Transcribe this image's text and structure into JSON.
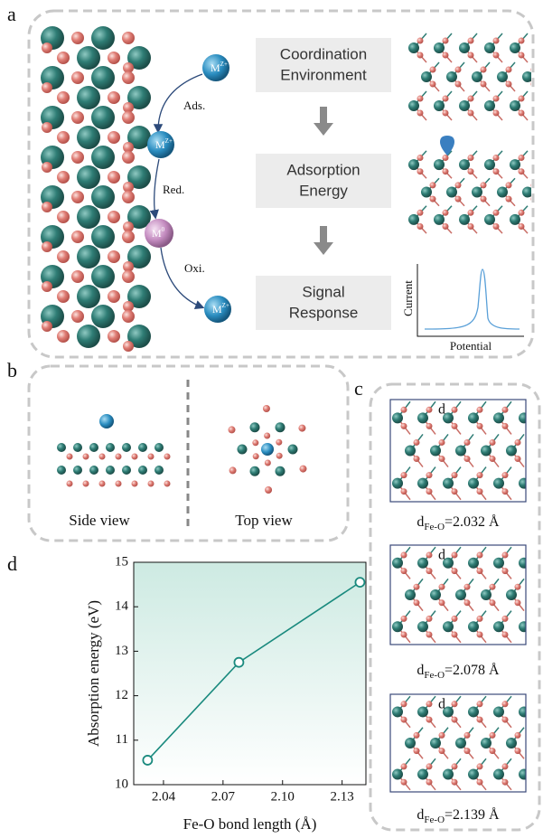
{
  "panel_labels": [
    "a",
    "b",
    "c",
    "d"
  ],
  "panel_a": {
    "steps": [
      [
        "Coordination",
        "Environment"
      ],
      [
        "Adsorption",
        "Energy"
      ],
      [
        "Signal",
        "Response"
      ]
    ],
    "ion": "M",
    "charge": "Z+",
    "reduced": "0",
    "reactions": [
      "Ads.",
      "Red.",
      "Oxi."
    ],
    "signal_axes": {
      "y": "Current",
      "x": "Potential"
    }
  },
  "panel_b": {
    "views": [
      "Side view",
      "Top view"
    ]
  },
  "panel_c": {
    "marker": "d",
    "symbol": "d",
    "subscript": "Fe-O",
    "values": [
      "=2.032 Å",
      "=2.078 Å",
      "=2.139 Å"
    ]
  },
  "chart_data": {
    "type": "line",
    "x": [
      2.032,
      2.078,
      2.139
    ],
    "values": [
      10.55,
      12.75,
      14.55
    ],
    "color": "#1a8a7e",
    "xlabel": "Fe-O bond length (Å)",
    "ylabel": "Absorption energy (eV)",
    "xlim": [
      2.025,
      2.142
    ],
    "ylim": [
      10,
      15
    ],
    "xticks": [
      2.04,
      2.07,
      {
        "value": 2.1,
        "label": "2.10"
      },
      2.13
    ],
    "yticks": [
      10,
      11,
      12,
      13,
      14,
      15
    ]
  }
}
